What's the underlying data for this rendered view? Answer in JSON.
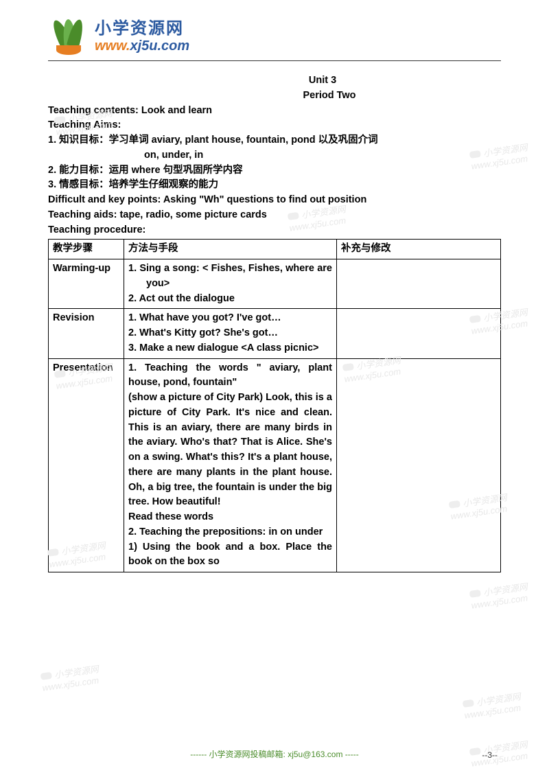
{
  "logo": {
    "cn_text": "小学资源网",
    "url_w": "www.",
    "url_rest": "xj5u.com"
  },
  "header": {
    "unit": "Unit 3",
    "period": "Period Two",
    "contents_label": "Teaching contents: Look and learn",
    "aims_label": "Teaching Aims:",
    "aim1": "1.  知识目标：学习单词 aviary, plant house, fountain, pond 以及巩固介词",
    "aim1_cont": "on, under, in",
    "aim2": "2.  能力目标：运用 where 句型巩固所学内容",
    "aim3": "3.  情感目标：培养学生仔细观察的能力",
    "difficult": "Difficult and key points: Asking \"Wh\" questions to find out position",
    "aids": "Teaching aids: tape, radio, some picture cards",
    "procedure": "Teaching procedure:"
  },
  "table": {
    "headers": {
      "col1": "教学步骤",
      "col2": "方法与手段",
      "col3": "补充与修改"
    },
    "rows": [
      {
        "step": "Warming-up",
        "method": [
          "1.  Sing a song: < Fishes, Fishes, where are you>",
          "2.  Act out the dialogue"
        ]
      },
      {
        "step": "Revision",
        "method": [
          "1.  What have you got? I've got…",
          "2.  What's Kitty got? She's got…",
          "3.  Make a new dialogue <A class picnic>"
        ]
      },
      {
        "step": "Presentation",
        "method_block": "1. Teaching the words \" aviary, plant house, pond, fountain\"\n (show a picture of City Park) Look, this is a picture of City Park. It's nice and clean. This is an aviary, there are many birds in the aviary. Who's that? That is Alice. She's on a swing. What's this? It's a plant house, there are many plants in the plant house. Oh, a big tree, the fountain is under the big tree. How beautiful!\nRead these words\n2. Teaching the prepositions:  in on under\n1) Using the book and a box. Place the book on the box so"
      }
    ]
  },
  "footer": {
    "text": "------ 小学资源网投稿邮箱: xj5u@163.com -----",
    "page": "--3--"
  },
  "watermarks": {
    "text": "小学资源网",
    "url": "www.xj5u.com"
  }
}
